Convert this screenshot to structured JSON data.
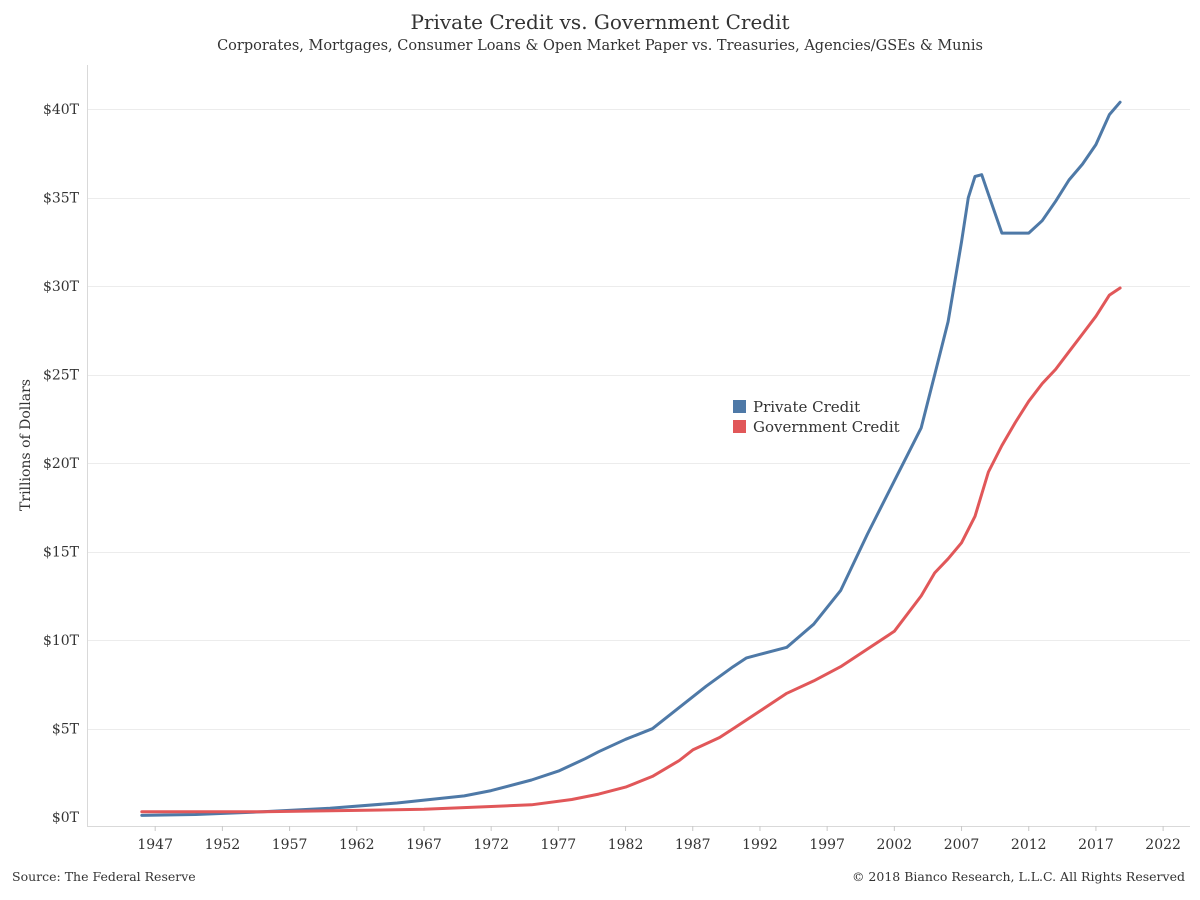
{
  "header": {
    "title": "Private Credit vs. Government Credit",
    "subtitle": "Corporates, Mortgages, Consumer Loans & Open Market Paper vs. Treasuries, Agencies/GSEs & Munis"
  },
  "footer": {
    "source": "Source: The Federal Reserve",
    "copyright": "© 2018 Bianco Research, L.L.C. All Rights Reserved"
  },
  "chart_data": {
    "type": "line",
    "title": "Private Credit vs. Government Credit",
    "subtitle": "Corporates, Mortgages, Consumer Loans & Open Market Paper vs. Treasuries, Agencies/GSEs & Munis",
    "xlabel": "",
    "ylabel": "Trillions of Dollars",
    "xlim": [
      1942,
      2024
    ],
    "ylim": [
      -0.5,
      42.5
    ],
    "x_ticks": [
      1947,
      1952,
      1957,
      1962,
      1967,
      1972,
      1977,
      1982,
      1987,
      1992,
      1997,
      2002,
      2007,
      2012,
      2017,
      2022
    ],
    "y_ticks": [
      0,
      5,
      10,
      15,
      20,
      25,
      30,
      35,
      40
    ],
    "y_tick_labels": [
      "$0T",
      "$5T",
      "$10T",
      "$15T",
      "$20T",
      "$25T",
      "$30T",
      "$35T",
      "$40T"
    ],
    "grid": "horizontal",
    "legend_position": "center-right",
    "series": [
      {
        "name": "Private Credit",
        "color": "#4e79a7",
        "points": [
          [
            1946,
            0.1
          ],
          [
            1950,
            0.15
          ],
          [
            1955,
            0.3
          ],
          [
            1960,
            0.5
          ],
          [
            1965,
            0.8
          ],
          [
            1970,
            1.2
          ],
          [
            1972,
            1.5
          ],
          [
            1975,
            2.1
          ],
          [
            1977,
            2.6
          ],
          [
            1979,
            3.3
          ],
          [
            1980,
            3.7
          ],
          [
            1982,
            4.4
          ],
          [
            1984,
            5.0
          ],
          [
            1986,
            6.2
          ],
          [
            1988,
            7.4
          ],
          [
            1990,
            8.5
          ],
          [
            1991,
            9.0
          ],
          [
            1992,
            9.2
          ],
          [
            1994,
            9.6
          ],
          [
            1996,
            10.9
          ],
          [
            1998,
            12.8
          ],
          [
            2000,
            16.0
          ],
          [
            2002,
            19.0
          ],
          [
            2003,
            20.5
          ],
          [
            2004,
            22.0
          ],
          [
            2005,
            25.0
          ],
          [
            2006,
            28.0
          ],
          [
            2007,
            32.5
          ],
          [
            2007.5,
            35.0
          ],
          [
            2008,
            36.2
          ],
          [
            2008.5,
            36.3
          ],
          [
            2009,
            35.2
          ],
          [
            2010,
            33.0
          ],
          [
            2011,
            33.0
          ],
          [
            2012,
            33.0
          ],
          [
            2013,
            33.7
          ],
          [
            2014,
            34.8
          ],
          [
            2015,
            36.0
          ],
          [
            2016,
            36.9
          ],
          [
            2017,
            38.0
          ],
          [
            2018,
            39.7
          ],
          [
            2018.8,
            40.4
          ]
        ]
      },
      {
        "name": "Government Credit",
        "color": "#e15759",
        "points": [
          [
            1946,
            0.3
          ],
          [
            1955,
            0.3
          ],
          [
            1962,
            0.38
          ],
          [
            1967,
            0.45
          ],
          [
            1972,
            0.6
          ],
          [
            1975,
            0.7
          ],
          [
            1978,
            1.0
          ],
          [
            1980,
            1.3
          ],
          [
            1982,
            1.7
          ],
          [
            1984,
            2.3
          ],
          [
            1986,
            3.2
          ],
          [
            1987,
            3.8
          ],
          [
            1989,
            4.5
          ],
          [
            1990,
            5.0
          ],
          [
            1992,
            6.0
          ],
          [
            1994,
            7.0
          ],
          [
            1996,
            7.7
          ],
          [
            1998,
            8.5
          ],
          [
            2000,
            9.5
          ],
          [
            2002,
            10.5
          ],
          [
            2004,
            12.5
          ],
          [
            2005,
            13.8
          ],
          [
            2006,
            14.6
          ],
          [
            2007,
            15.5
          ],
          [
            2008,
            17.0
          ],
          [
            2009,
            19.5
          ],
          [
            2010,
            21.0
          ],
          [
            2011,
            22.3
          ],
          [
            2012,
            23.5
          ],
          [
            2013,
            24.5
          ],
          [
            2014,
            25.3
          ],
          [
            2015,
            26.3
          ],
          [
            2016,
            27.3
          ],
          [
            2017,
            28.3
          ],
          [
            2018,
            29.5
          ],
          [
            2018.8,
            29.9
          ]
        ]
      }
    ]
  }
}
